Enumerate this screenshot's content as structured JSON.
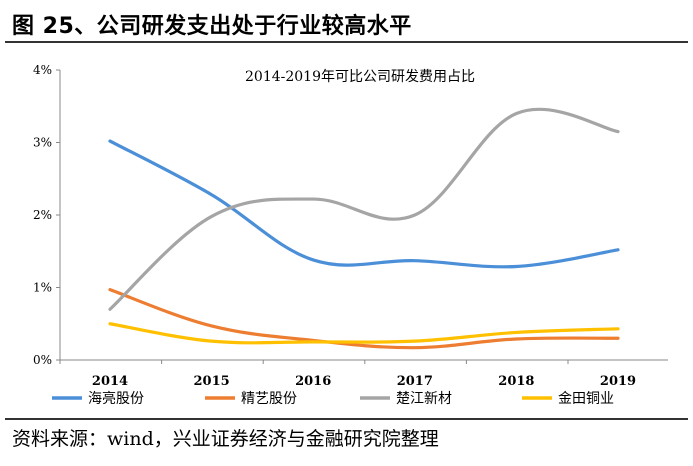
{
  "header": {
    "title": "图 25、公司研发支出处于行业较高水平"
  },
  "footer": {
    "source": "资料来源：wind，兴业证券经济与金融研究院整理"
  },
  "chart_data": {
    "type": "line",
    "title": "2014-2019年可比公司研发费用占比",
    "x": [
      "2014",
      "2015",
      "2016",
      "2017",
      "2018",
      "2019"
    ],
    "y_ticks": [
      "0%",
      "1%",
      "2%",
      "3%",
      "4%"
    ],
    "ylim": [
      0,
      4
    ],
    "grid": false,
    "legend_position": "bottom",
    "series": [
      {
        "name": "海亮股份",
        "color": "#4a8fd8",
        "values": [
          3.02,
          2.28,
          1.38,
          1.37,
          1.29,
          1.52
        ]
      },
      {
        "name": "精艺股份",
        "color": "#ed7d31",
        "values": [
          0.97,
          0.47,
          0.27,
          0.17,
          0.29,
          0.3
        ]
      },
      {
        "name": "楚江新材",
        "color": "#a5a5a5",
        "values": [
          0.7,
          1.98,
          2.22,
          2.0,
          3.4,
          3.15
        ]
      },
      {
        "name": "金田铜业",
        "color": "#ffc000",
        "values": [
          0.5,
          0.26,
          0.25,
          0.26,
          0.38,
          0.43
        ]
      }
    ]
  }
}
